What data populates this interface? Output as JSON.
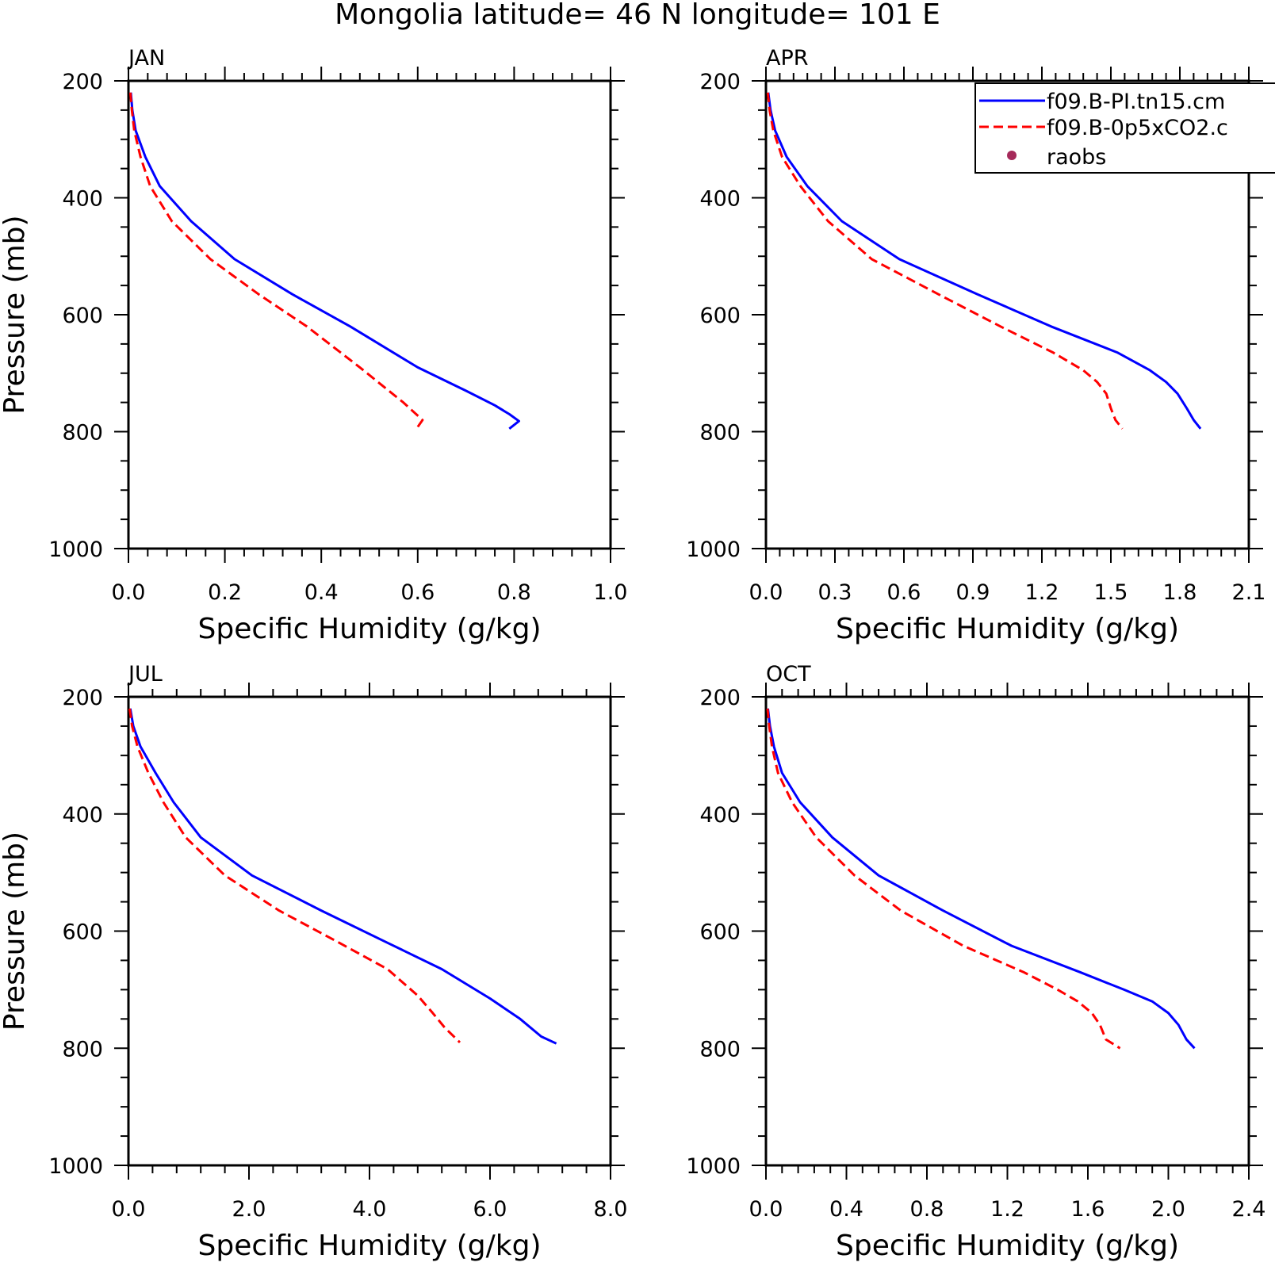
{
  "title": "Mongolia  latitude= 46 N longitude= 101 E",
  "legend": {
    "entries": [
      {
        "label": "f09.B-PI.tn15.cm",
        "style": "solid",
        "color": "#0000ff"
      },
      {
        "label": "f09.B-0p5xCO2.c",
        "style": "dashed",
        "color": "#ff0000"
      },
      {
        "label": "raobs",
        "style": "dot",
        "color": "#a52a5a"
      }
    ]
  },
  "colors": {
    "model1": "#0000ff",
    "model2": "#ff0000",
    "raobs": "#a52a5a"
  },
  "chart_data": [
    {
      "type": "line",
      "title": "JAN",
      "xlabel": "Specific Humidity (g/kg)",
      "ylabel": "Pressure (mb)",
      "xlim": [
        0.0,
        1.0
      ],
      "ylim": [
        200,
        1000
      ],
      "y_inverted": true,
      "xticks": [
        "0.0",
        "0.2",
        "0.4",
        "0.6",
        "0.8",
        "1.0"
      ],
      "yticks": [
        "200",
        "400",
        "600",
        "800",
        "1000"
      ],
      "series": [
        {
          "name": "f09.B-PI.tn15.cm",
          "points": [
            [
              0.005,
              220
            ],
            [
              0.008,
              250
            ],
            [
              0.015,
              285
            ],
            [
              0.035,
              330
            ],
            [
              0.065,
              380
            ],
            [
              0.13,
              440
            ],
            [
              0.22,
              505
            ],
            [
              0.34,
              565
            ],
            [
              0.46,
              620
            ],
            [
              0.6,
              690
            ],
            [
              0.7,
              730
            ],
            [
              0.76,
              755
            ],
            [
              0.79,
              770
            ],
            [
              0.81,
              782
            ],
            [
              0.79,
              795
            ]
          ]
        },
        {
          "name": "f09.B-0p5xCO2.c",
          "points": [
            [
              0.004,
              220
            ],
            [
              0.007,
              250
            ],
            [
              0.012,
              285
            ],
            [
              0.025,
              330
            ],
            [
              0.045,
              380
            ],
            [
              0.09,
              440
            ],
            [
              0.17,
              505
            ],
            [
              0.27,
              565
            ],
            [
              0.37,
              620
            ],
            [
              0.48,
              690
            ],
            [
              0.54,
              730
            ],
            [
              0.57,
              750
            ],
            [
              0.59,
              765
            ],
            [
              0.61,
              780
            ],
            [
              0.6,
              792
            ]
          ]
        }
      ]
    },
    {
      "type": "line",
      "title": "APR",
      "xlabel": "Specific Humidity (g/kg)",
      "ylabel": "",
      "xlim": [
        0.0,
        2.1
      ],
      "ylim": [
        200,
        1000
      ],
      "y_inverted": true,
      "xticks": [
        "0.0",
        "0.3",
        "0.6",
        "0.9",
        "1.2",
        "1.5",
        "1.8",
        "2.1"
      ],
      "yticks": [
        "200",
        "400",
        "600",
        "800",
        "1000"
      ],
      "series": [
        {
          "name": "f09.B-PI.tn15.cm",
          "points": [
            [
              0.01,
              220
            ],
            [
              0.02,
              250
            ],
            [
              0.04,
              285
            ],
            [
              0.09,
              330
            ],
            [
              0.18,
              380
            ],
            [
              0.33,
              440
            ],
            [
              0.58,
              505
            ],
            [
              0.92,
              565
            ],
            [
              1.24,
              620
            ],
            [
              1.53,
              665
            ],
            [
              1.67,
              695
            ],
            [
              1.74,
              715
            ],
            [
              1.79,
              735
            ],
            [
              1.83,
              760
            ],
            [
              1.86,
              780
            ],
            [
              1.89,
              795
            ]
          ]
        },
        {
          "name": "f09.B-0p5xCO2.c",
          "points": [
            [
              0.008,
              220
            ],
            [
              0.016,
              250
            ],
            [
              0.032,
              285
            ],
            [
              0.07,
              330
            ],
            [
              0.15,
              380
            ],
            [
              0.27,
              440
            ],
            [
              0.46,
              505
            ],
            [
              0.75,
              565
            ],
            [
              1.02,
              620
            ],
            [
              1.25,
              665
            ],
            [
              1.38,
              695
            ],
            [
              1.44,
              715
            ],
            [
              1.48,
              735
            ],
            [
              1.5,
              760
            ],
            [
              1.52,
              780
            ],
            [
              1.55,
              795
            ]
          ]
        }
      ]
    },
    {
      "type": "line",
      "title": "JUL",
      "xlabel": "Specific Humidity (g/kg)",
      "ylabel": "Pressure (mb)",
      "xlim": [
        0.0,
        8.0
      ],
      "ylim": [
        200,
        1000
      ],
      "y_inverted": true,
      "xticks": [
        "0.0",
        "2.0",
        "4.0",
        "6.0",
        "8.0"
      ],
      "yticks": [
        "200",
        "400",
        "600",
        "800",
        "1000"
      ],
      "series": [
        {
          "name": "f09.B-PI.tn15.cm",
          "points": [
            [
              0.03,
              220
            ],
            [
              0.08,
              250
            ],
            [
              0.2,
              285
            ],
            [
              0.45,
              330
            ],
            [
              0.75,
              380
            ],
            [
              1.2,
              440
            ],
            [
              2.05,
              505
            ],
            [
              3.2,
              565
            ],
            [
              4.3,
              620
            ],
            [
              5.2,
              665
            ],
            [
              6.0,
              715
            ],
            [
              6.5,
              750
            ],
            [
              6.85,
              780
            ],
            [
              7.1,
              792
            ]
          ]
        },
        {
          "name": "f09.B-0p5xCO2.c",
          "points": [
            [
              0.02,
              220
            ],
            [
              0.06,
              250
            ],
            [
              0.15,
              285
            ],
            [
              0.33,
              330
            ],
            [
              0.58,
              380
            ],
            [
              0.95,
              440
            ],
            [
              1.6,
              505
            ],
            [
              2.5,
              565
            ],
            [
              3.5,
              620
            ],
            [
              4.3,
              665
            ],
            [
              4.8,
              710
            ],
            [
              5.05,
              740
            ],
            [
              5.25,
              765
            ],
            [
              5.5,
              790
            ]
          ]
        }
      ]
    },
    {
      "type": "line",
      "title": "OCT",
      "xlabel": "Specific Humidity (g/kg)",
      "ylabel": "",
      "xlim": [
        0.0,
        2.4
      ],
      "ylim": [
        200,
        1000
      ],
      "y_inverted": true,
      "xticks": [
        "0.0",
        "0.4",
        "0.8",
        "1.2",
        "1.6",
        "2.0",
        "2.4"
      ],
      "yticks": [
        "200",
        "400",
        "600",
        "800",
        "1000"
      ],
      "series": [
        {
          "name": "f09.B-PI.tn15.cm",
          "points": [
            [
              0.01,
              220
            ],
            [
              0.02,
              250
            ],
            [
              0.04,
              285
            ],
            [
              0.08,
              330
            ],
            [
              0.17,
              380
            ],
            [
              0.33,
              440
            ],
            [
              0.56,
              505
            ],
            [
              0.88,
              565
            ],
            [
              1.22,
              625
            ],
            [
              1.56,
              670
            ],
            [
              1.78,
              700
            ],
            [
              1.92,
              720
            ],
            [
              2.0,
              740
            ],
            [
              2.05,
              760
            ],
            [
              2.09,
              785
            ],
            [
              2.13,
              800
            ]
          ]
        },
        {
          "name": "f09.B-0p5xCO2.c",
          "points": [
            [
              0.008,
              220
            ],
            [
              0.016,
              250
            ],
            [
              0.03,
              285
            ],
            [
              0.06,
              330
            ],
            [
              0.13,
              380
            ],
            [
              0.25,
              440
            ],
            [
              0.44,
              505
            ],
            [
              0.67,
              565
            ],
            [
              0.98,
              625
            ],
            [
              1.28,
              670
            ],
            [
              1.45,
              700
            ],
            [
              1.55,
              720
            ],
            [
              1.62,
              740
            ],
            [
              1.66,
              760
            ],
            [
              1.69,
              785
            ],
            [
              1.76,
              800
            ]
          ]
        }
      ]
    }
  ]
}
